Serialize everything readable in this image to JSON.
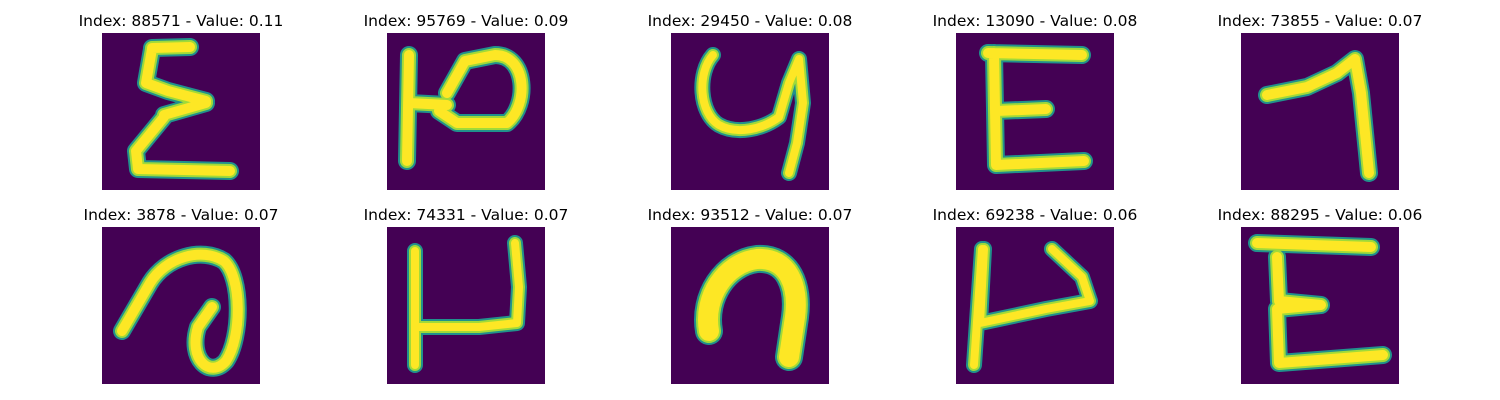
{
  "colors": {
    "background": "#440154",
    "stroke_core": "#fde725",
    "stroke_mid": "#a0da39",
    "stroke_edge": "#21918c"
  },
  "panels": [
    {
      "title": "Index: 88571 - Value: 0.11",
      "glyph": "sigma"
    },
    {
      "title": "Index: 95769 - Value: 0.09",
      "glyph": "h-hook"
    },
    {
      "title": "Index: 29450 - Value: 0.08",
      "glyph": "y-curl"
    },
    {
      "title": "Index: 13090 - Value: 0.08",
      "glyph": "e-shape"
    },
    {
      "title": "Index: 73855 - Value: 0.07",
      "glyph": "seven-shape"
    },
    {
      "title": "Index: 3878 - Value: 0.07",
      "glyph": "a-loop"
    },
    {
      "title": "Index: 74331 - Value: 0.07",
      "glyph": "h-open"
    },
    {
      "title": "Index: 93512 - Value: 0.07",
      "glyph": "arch"
    },
    {
      "title": "Index: 69238 - Value: 0.06",
      "glyph": "p-shape"
    },
    {
      "title": "Index: 88295 - Value: 0.06",
      "glyph": "e-cursive"
    }
  ]
}
